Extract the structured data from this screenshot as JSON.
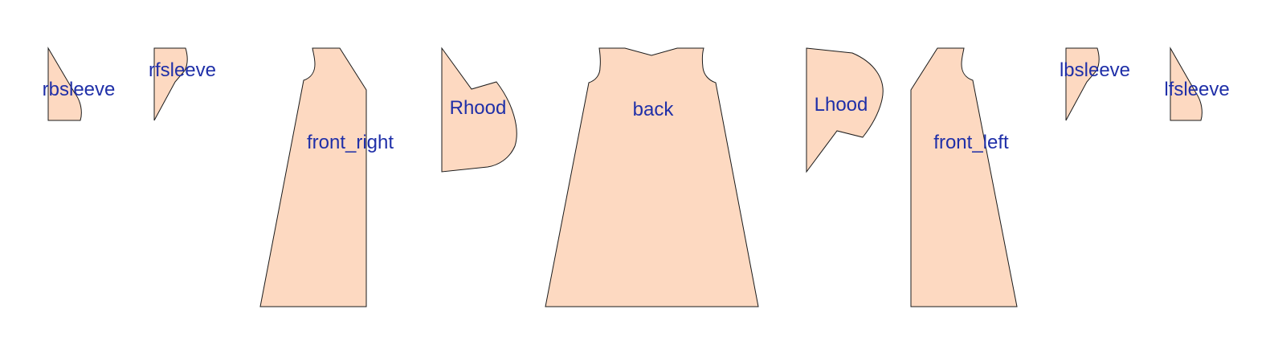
{
  "colors": {
    "fill": "#fdd9c1",
    "stroke": "#1a1a1a",
    "label": "#1f2fa8",
    "background": "#ffffff"
  },
  "pieces": [
    {
      "name": "rbsleeve",
      "label": "rbsleeve"
    },
    {
      "name": "rfsleeve",
      "label": "rfsleeve"
    },
    {
      "name": "front_right",
      "label": "front_right"
    },
    {
      "name": "Rhood",
      "label": "Rhood"
    },
    {
      "name": "back",
      "label": "back"
    },
    {
      "name": "Lhood",
      "label": "Lhood"
    },
    {
      "name": "front_left",
      "label": "front_left"
    },
    {
      "name": "lbsleeve",
      "label": "lbsleeve"
    },
    {
      "name": "lfsleeve",
      "label": "lfsleeve"
    }
  ]
}
